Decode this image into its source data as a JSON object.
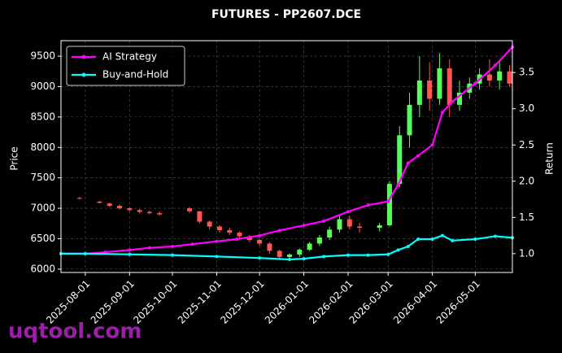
{
  "chart_data": {
    "type": "candlestick",
    "title": "FUTURES - PP2607.DCE",
    "ylabel": "Price",
    "y2label": "Return",
    "watermark": "uqtool.com",
    "up_color": "#55ff55",
    "down_color": "#ff5555",
    "grid": true,
    "legend": "upper left",
    "x": [
      "2025-07-28",
      "2025-08-11",
      "2025-08-18",
      "2025-08-25",
      "2025-09-01",
      "2025-09-08",
      "2025-09-15",
      "2025-09-22",
      "2025-10-13",
      "2025-10-20",
      "2025-10-27",
      "2025-11-03",
      "2025-11-10",
      "2025-11-17",
      "2025-11-24",
      "2025-12-01",
      "2025-12-08",
      "2025-12-15",
      "2025-12-22",
      "2025-12-29",
      "2026-01-05",
      "2026-01-12",
      "2026-01-19",
      "2026-01-26",
      "2026-02-02",
      "2026-02-09",
      "2026-02-23",
      "2026-03-02",
      "2026-03-09",
      "2026-03-16",
      "2026-03-23",
      "2026-03-30",
      "2026-04-06",
      "2026-04-13",
      "2026-04-20",
      "2026-04-27",
      "2026-05-04",
      "2026-05-11",
      "2026-05-18",
      "2026-05-25"
    ],
    "open": [
      7170,
      7110,
      7080,
      7040,
      7000,
      6970,
      6940,
      6920,
      7000,
      6950,
      6780,
      6700,
      6640,
      6600,
      6540,
      6480,
      6420,
      6300,
      6200,
      6240,
      6320,
      6420,
      6520,
      6650,
      6820,
      6700,
      6680,
      6720,
      7400,
      8200,
      8700,
      9100,
      8800,
      9300,
      8700,
      8900,
      9050,
      9200,
      9100,
      9250
    ],
    "high": [
      7190,
      7120,
      7090,
      7060,
      7010,
      6990,
      6960,
      6950,
      7020,
      6960,
      6800,
      6720,
      6680,
      6620,
      6560,
      6500,
      6440,
      6320,
      6260,
      6340,
      6450,
      6560,
      6700,
      6900,
      6880,
      6760,
      6760,
      7450,
      8350,
      8900,
      9500,
      9400,
      9550,
      9450,
      9100,
      9150,
      9300,
      9450,
      9400,
      9350
    ],
    "low": [
      7150,
      7080,
      7020,
      6980,
      6950,
      6920,
      6900,
      6880,
      6920,
      6750,
      6650,
      6600,
      6560,
      6500,
      6440,
      6380,
      6250,
      6150,
      6160,
      6200,
      6300,
      6380,
      6480,
      6600,
      6650,
      6600,
      6620,
      6700,
      7350,
      8000,
      8500,
      8600,
      8700,
      8500,
      8600,
      8800,
      8950,
      9000,
      8950,
      9000
    ],
    "close": [
      7160,
      7090,
      7040,
      7000,
      6970,
      6940,
      6920,
      6900,
      6950,
      6780,
      6700,
      6640,
      6600,
      6540,
      6480,
      6420,
      6300,
      6200,
      6240,
      6320,
      6420,
      6520,
      6650,
      6820,
      6700,
      6680,
      6720,
      7400,
      8200,
      8700,
      9100,
      8800,
      9300,
      8700,
      8900,
      9050,
      9200,
      9100,
      9250,
      9050
    ],
    "series": [
      {
        "name": "AI Strategy",
        "color": "#ff00ff",
        "axis": "y2",
        "x": [
          "2025-07-15",
          "2025-08-01",
          "2025-08-15",
          "2025-09-01",
          "2025-09-15",
          "2025-10-01",
          "2025-10-15",
          "2025-11-01",
          "2025-11-15",
          "2025-12-01",
          "2025-12-15",
          "2026-01-01",
          "2026-01-15",
          "2026-02-01",
          "2026-02-15",
          "2026-03-01",
          "2026-03-08",
          "2026-03-15",
          "2026-03-22",
          "2026-04-01",
          "2026-04-08",
          "2026-04-15",
          "2026-05-01",
          "2026-05-15",
          "2026-05-27"
        ],
        "values": [
          1.0,
          1.0,
          1.02,
          1.05,
          1.08,
          1.1,
          1.13,
          1.17,
          1.2,
          1.25,
          1.32,
          1.39,
          1.45,
          1.58,
          1.67,
          1.72,
          1.95,
          2.25,
          2.35,
          2.5,
          2.95,
          3.1,
          3.35,
          3.6,
          3.85
        ]
      },
      {
        "name": "Buy-and-Hold",
        "color": "#00ffff",
        "axis": "y2",
        "x": [
          "2025-07-15",
          "2025-08-01",
          "2025-09-01",
          "2025-10-01",
          "2025-11-01",
          "2025-12-01",
          "2025-12-22",
          "2026-01-01",
          "2026-01-15",
          "2026-02-01",
          "2026-02-15",
          "2026-03-01",
          "2026-03-08",
          "2026-03-15",
          "2026-03-22",
          "2026-04-01",
          "2026-04-08",
          "2026-04-15",
          "2026-05-01",
          "2026-05-15",
          "2026-05-27"
        ],
        "values": [
          1.0,
          1.0,
          0.99,
          0.98,
          0.96,
          0.94,
          0.92,
          0.93,
          0.96,
          0.98,
          0.98,
          0.99,
          1.05,
          1.1,
          1.2,
          1.2,
          1.25,
          1.18,
          1.2,
          1.24,
          1.22
        ]
      }
    ],
    "xlim": [
      "2025-07-15",
      "2026-05-27"
    ],
    "xticks": [
      "2025-08-01",
      "2025-09-01",
      "2025-10-01",
      "2025-11-01",
      "2025-12-01",
      "2026-01-01",
      "2026-02-01",
      "2026-03-01",
      "2026-04-01",
      "2026-05-01"
    ],
    "ylim": [
      5945,
      9755
    ],
    "yticks": [
      6000,
      6500,
      7000,
      7500,
      8000,
      8500,
      9000,
      9500
    ],
    "y2lim": [
      0.74,
      3.94
    ],
    "y2ticks": [
      {
        "value": 1,
        "label": "1.0"
      },
      1.5,
      {
        "value": 2,
        "label": "2.0"
      },
      2.5,
      {
        "value": 3,
        "label": "3.0"
      },
      3.5
    ]
  }
}
